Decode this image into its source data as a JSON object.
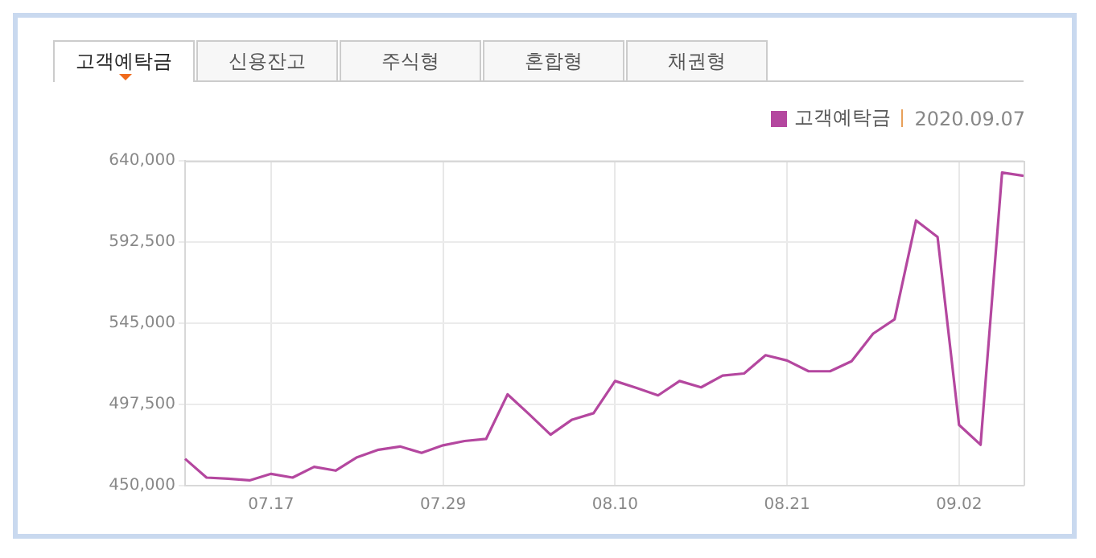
{
  "chart_data": {
    "type": "line",
    "categories": [
      null,
      null,
      null,
      null,
      "07.17",
      null,
      null,
      null,
      null,
      null,
      null,
      null,
      "07.29",
      null,
      null,
      null,
      null,
      null,
      null,
      null,
      "08.10",
      null,
      null,
      null,
      null,
      null,
      null,
      null,
      "08.21",
      null,
      null,
      null,
      null,
      null,
      null,
      null,
      "09.02",
      null,
      null,
      null
    ],
    "series": [
      {
        "name": "고객예탁금",
        "color": "#b4479f",
        "values": [
          465700,
          454700,
          454100,
          453100,
          456900,
          454700,
          461000,
          458800,
          466600,
          471000,
          472900,
          469200,
          473600,
          476100,
          477300,
          503400,
          491800,
          479800,
          488600,
          492400,
          511200,
          507100,
          502800,
          511200,
          507500,
          514400,
          515600,
          526300,
          523200,
          516900,
          516900,
          522800,
          538900,
          547300,
          605100,
          595400,
          485500,
          473900,
          633100,
          631200
        ]
      }
    ],
    "ylim": [
      450000,
      640000
    ],
    "yticks": [
      {
        "value": 450000,
        "label": "450,000"
      },
      {
        "value": 497500,
        "label": "497,500"
      },
      {
        "value": 545000,
        "label": "545,000"
      },
      {
        "value": 592500,
        "label": "592,500"
      },
      {
        "value": 640000,
        "label": "640,000"
      }
    ],
    "grid": true,
    "legend": "top right",
    "marker": "none",
    "annotations": [
      "고객예탁금",
      "신용잔고",
      "주식형",
      "혼합형",
      "채권형",
      "2020.09.07"
    ]
  }
}
